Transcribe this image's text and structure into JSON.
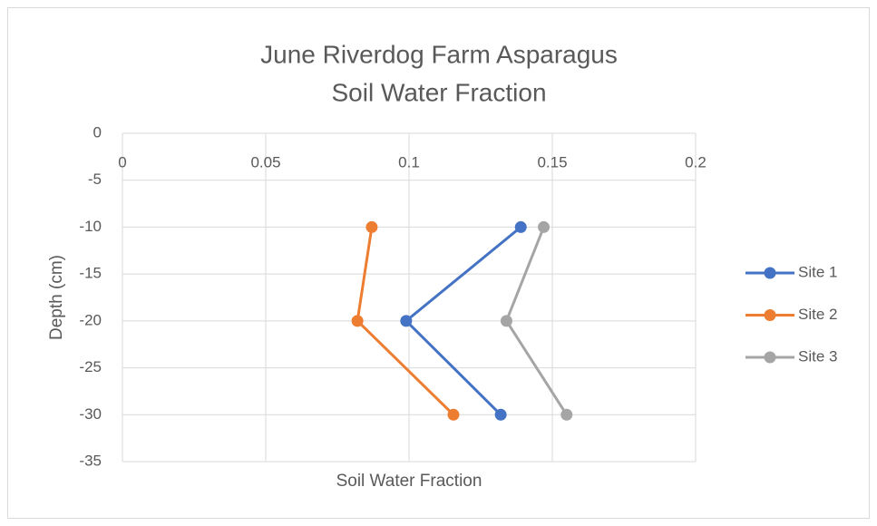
{
  "chart_data": {
    "type": "line",
    "title": [
      "June Riverdog Farm Asparagus",
      "Soil Water Fraction"
    ],
    "xlabel": "Soil Water Fraction",
    "ylabel": "Depth (cm)",
    "xlim": [
      0,
      0.2
    ],
    "xticks": [
      0,
      0.05,
      0.1,
      0.15,
      0.2
    ],
    "ylim": [
      -35,
      0
    ],
    "yticks": [
      0,
      -5,
      -10,
      -15,
      -20,
      -25,
      -30,
      -35
    ],
    "grid": true,
    "legend": "right",
    "series": [
      {
        "name": "Site 1",
        "color": "#4472c4",
        "x": [
          0.139,
          0.099,
          0.132
        ],
        "values": [
          -10,
          -20,
          -30
        ]
      },
      {
        "name": "Site 2",
        "color": "#ed7d31",
        "x": [
          0.087,
          0.082,
          0.1155
        ],
        "values": [
          -10,
          -20,
          -30
        ]
      },
      {
        "name": "Site 3",
        "color": "#a5a5a5",
        "x": [
          0.147,
          0.134,
          0.155
        ],
        "values": [
          -10,
          -20,
          -30
        ]
      }
    ]
  }
}
